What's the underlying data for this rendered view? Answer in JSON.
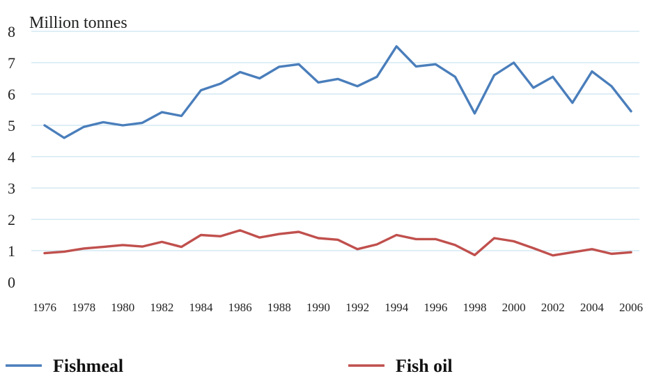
{
  "chart_data": {
    "type": "line",
    "title": "",
    "ylabel": "Million tonnes",
    "xlabel": "",
    "ylim": [
      0,
      8
    ],
    "yticks": [
      "0",
      "1",
      "2",
      "3",
      "4",
      "5",
      "6",
      "7",
      "8"
    ],
    "xticks": [
      "1976",
      "1978",
      "1980",
      "1982",
      "1984",
      "1986",
      "1988",
      "1990",
      "1992",
      "1994",
      "1996",
      "1998",
      "2000",
      "2002",
      "2004",
      "2006"
    ],
    "x": [
      1976,
      1977,
      1978,
      1979,
      1980,
      1981,
      1982,
      1983,
      1984,
      1985,
      1986,
      1987,
      1988,
      1989,
      1990,
      1991,
      1992,
      1993,
      1994,
      1995,
      1996,
      1997,
      1998,
      1999,
      2000,
      2001,
      2002,
      2003,
      2004,
      2005,
      2006
    ],
    "grid": "horizontal",
    "legend_position": "bottom",
    "series": [
      {
        "name": "Fishmeal",
        "color": "#4a7ebb",
        "values": [
          5.0,
          4.6,
          4.95,
          5.1,
          5.0,
          5.08,
          5.42,
          5.3,
          6.12,
          6.33,
          6.7,
          6.5,
          6.87,
          6.95,
          6.37,
          6.48,
          6.25,
          6.55,
          7.52,
          6.88,
          6.95,
          6.55,
          5.38,
          6.6,
          7.0,
          6.2,
          6.55,
          5.72,
          6.72,
          6.25,
          5.45
        ]
      },
      {
        "name": "Fish oil",
        "color": "#c0504d",
        "values": [
          0.92,
          0.97,
          1.07,
          1.12,
          1.18,
          1.13,
          1.28,
          1.12,
          1.5,
          1.46,
          1.65,
          1.42,
          1.53,
          1.6,
          1.4,
          1.35,
          1.05,
          1.2,
          1.5,
          1.37,
          1.37,
          1.18,
          0.86,
          1.4,
          1.3,
          1.08,
          0.85,
          0.95,
          1.05,
          0.9,
          0.95
        ]
      }
    ]
  }
}
